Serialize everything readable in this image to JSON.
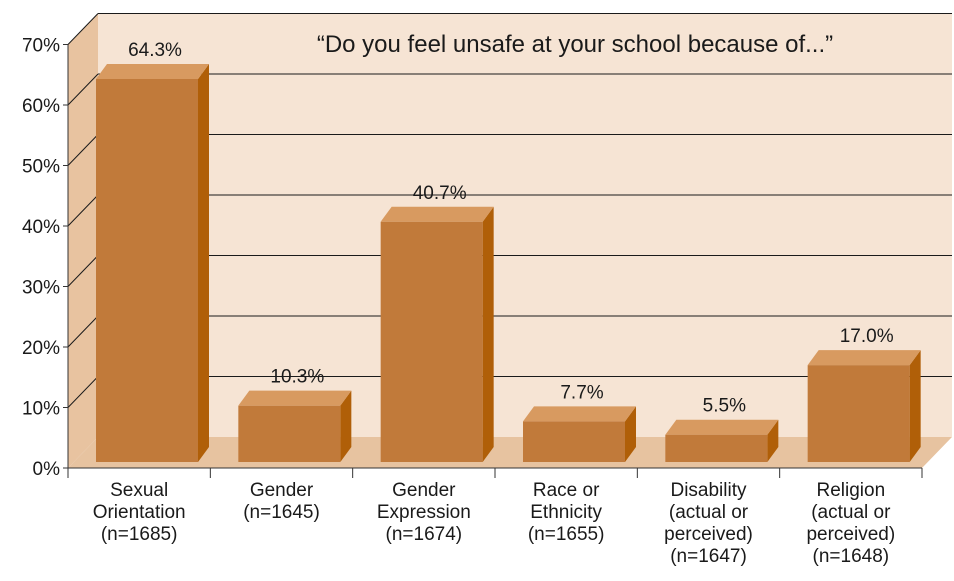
{
  "chart_data": {
    "type": "bar",
    "title": "“Do you feel unsafe at your school because of...”",
    "xlabel": "",
    "ylabel": "",
    "ylim": [
      0,
      70
    ],
    "yticks": [
      0,
      10,
      20,
      30,
      40,
      50,
      60,
      70
    ],
    "ytick_labels": [
      "0%",
      "10%",
      "20%",
      "30%",
      "40%",
      "50%",
      "60%",
      "70%"
    ],
    "grid": true,
    "categories": [
      [
        "Sexual",
        "Orientation",
        "(n=1685)"
      ],
      [
        "Gender",
        "(n=1645)"
      ],
      [
        "Gender",
        "Expression",
        "(n=1674)"
      ],
      [
        "Race or",
        "Ethnicity",
        "(n=1655)"
      ],
      [
        "Disability",
        "(actual or",
        "perceived)",
        "(n=1647)"
      ],
      [
        "Religion",
        "(actual or",
        "perceived)",
        "(n=1648)"
      ]
    ],
    "values": [
      64.3,
      10.3,
      40.7,
      7.7,
      5.5,
      17.0
    ],
    "value_labels": [
      "64.3%",
      "10.3%",
      "40.7%",
      "7.7%",
      "5.5%",
      "17.0%"
    ]
  },
  "colors": {
    "wall": "#f6e4d4",
    "side_wall": "#e8c3a0",
    "floor": "#e7c3a0",
    "bar_front": "#c17a3a",
    "bar_top": "#d89a60",
    "bar_side": "#b05f08",
    "grid": "#1a1a1a",
    "axis": "#333333"
  }
}
